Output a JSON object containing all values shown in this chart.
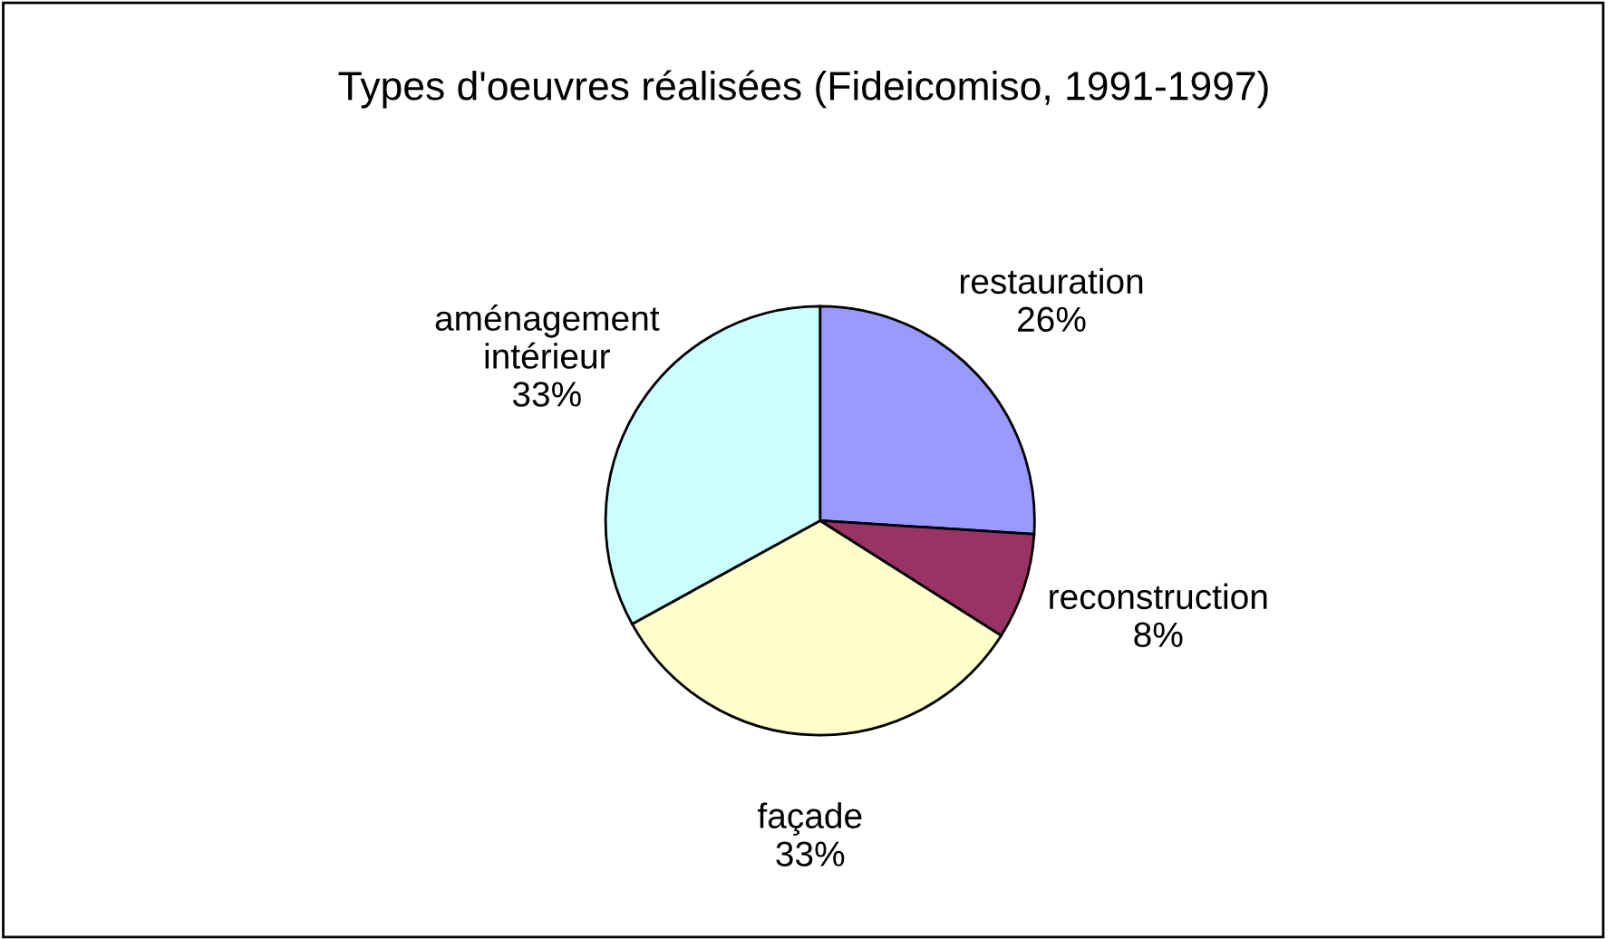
{
  "chart_data": {
    "type": "pie",
    "title": "Types d'oeuvres réalisées (Fideicomiso, 1991-1997)",
    "categories": [
      "restauration",
      "reconstruction",
      "façade",
      "aménagement\nintérieur"
    ],
    "values": [
      26,
      8,
      33,
      33
    ],
    "colors": [
      "#9999ff",
      "#993366",
      "#ffffcc",
      "#ccffff"
    ],
    "value_labels": [
      "26%",
      "8%",
      "33%",
      "33%"
    ]
  }
}
